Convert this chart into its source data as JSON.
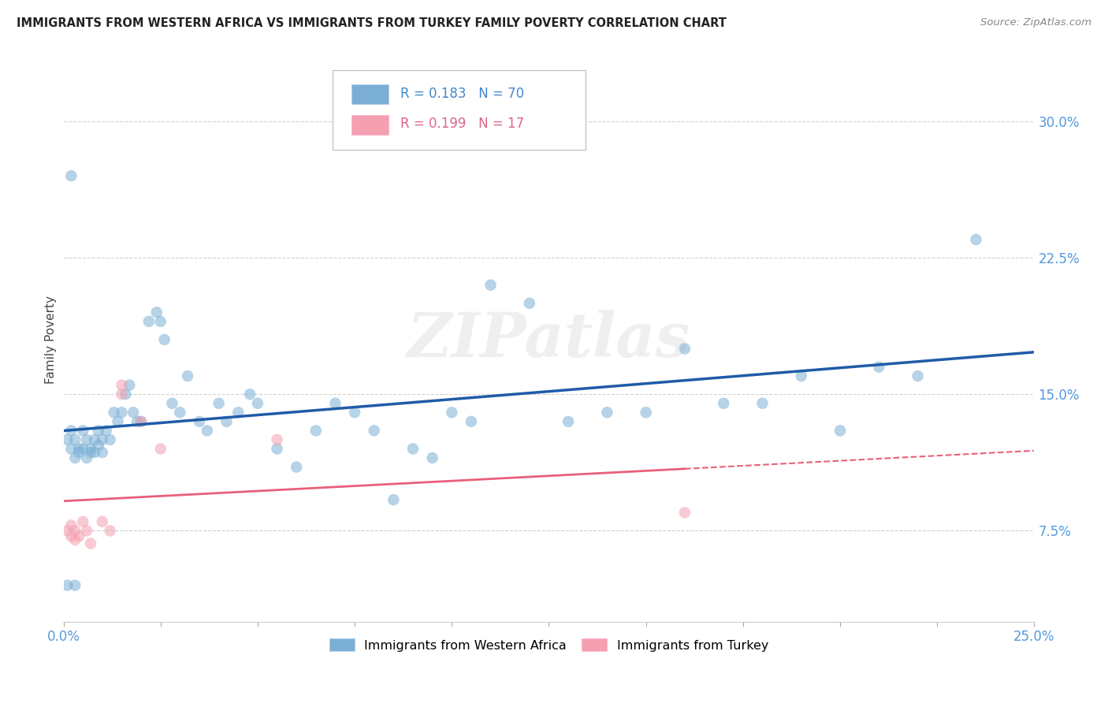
{
  "title": "IMMIGRANTS FROM WESTERN AFRICA VS IMMIGRANTS FROM TURKEY FAMILY POVERTY CORRELATION CHART",
  "source": "Source: ZipAtlas.com",
  "ylabel": "Family Poverty",
  "ytick_labels": [
    "7.5%",
    "15.0%",
    "22.5%",
    "30.0%"
  ],
  "ytick_values": [
    0.075,
    0.15,
    0.225,
    0.3
  ],
  "xtick_labels_edge": [
    "0.0%",
    "25.0%"
  ],
  "xlim": [
    0.0,
    0.25
  ],
  "ylim": [
    0.025,
    0.335
  ],
  "legend_label1": "Immigrants from Western Africa",
  "legend_label2": "Immigrants from Turkey",
  "R1": "0.183",
  "N1": "70",
  "R2": "0.199",
  "N2": "17",
  "watermark": "ZIPatlas",
  "blue_color": "#7BAFD4",
  "pink_color": "#F4A0B0",
  "line_blue": "#1F5BA8",
  "line_pink": "#E8607A",
  "blue_alpha": 0.55,
  "pink_alpha": 0.55,
  "western_africa_x": [
    0.001,
    0.002,
    0.002,
    0.003,
    0.003,
    0.004,
    0.004,
    0.005,
    0.005,
    0.006,
    0.006,
    0.007,
    0.007,
    0.008,
    0.008,
    0.009,
    0.009,
    0.01,
    0.01,
    0.011,
    0.012,
    0.013,
    0.014,
    0.015,
    0.016,
    0.017,
    0.018,
    0.019,
    0.02,
    0.022,
    0.024,
    0.025,
    0.026,
    0.028,
    0.03,
    0.032,
    0.035,
    0.037,
    0.04,
    0.042,
    0.045,
    0.048,
    0.05,
    0.055,
    0.06,
    0.065,
    0.07,
    0.075,
    0.08,
    0.085,
    0.09,
    0.095,
    0.1,
    0.105,
    0.11,
    0.12,
    0.13,
    0.14,
    0.15,
    0.16,
    0.17,
    0.18,
    0.19,
    0.2,
    0.21,
    0.22,
    0.235,
    0.003,
    0.001,
    0.002
  ],
  "western_africa_y": [
    0.125,
    0.13,
    0.12,
    0.125,
    0.115,
    0.12,
    0.118,
    0.13,
    0.12,
    0.115,
    0.125,
    0.118,
    0.12,
    0.125,
    0.118,
    0.122,
    0.13,
    0.125,
    0.118,
    0.13,
    0.125,
    0.14,
    0.135,
    0.14,
    0.15,
    0.155,
    0.14,
    0.135,
    0.135,
    0.19,
    0.195,
    0.19,
    0.18,
    0.145,
    0.14,
    0.16,
    0.135,
    0.13,
    0.145,
    0.135,
    0.14,
    0.15,
    0.145,
    0.12,
    0.11,
    0.13,
    0.145,
    0.14,
    0.13,
    0.092,
    0.12,
    0.115,
    0.14,
    0.135,
    0.21,
    0.2,
    0.135,
    0.14,
    0.14,
    0.175,
    0.145,
    0.145,
    0.16,
    0.13,
    0.165,
    0.16,
    0.235,
    0.045,
    0.045,
    0.27
  ],
  "turkey_x": [
    0.001,
    0.002,
    0.002,
    0.003,
    0.003,
    0.004,
    0.005,
    0.006,
    0.007,
    0.01,
    0.012,
    0.015,
    0.015,
    0.02,
    0.025,
    0.055,
    0.16
  ],
  "turkey_y": [
    0.075,
    0.078,
    0.072,
    0.075,
    0.07,
    0.072,
    0.08,
    0.075,
    0.068,
    0.08,
    0.075,
    0.15,
    0.155,
    0.135,
    0.12,
    0.125,
    0.085
  ]
}
